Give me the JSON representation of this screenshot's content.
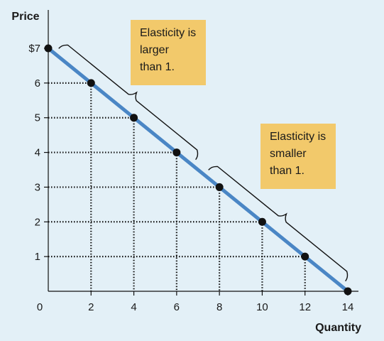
{
  "chart_data": {
    "type": "line",
    "xlabel": "Quantity",
    "ylabel": "Price",
    "xlim": [
      0,
      14
    ],
    "ylim": [
      0,
      7
    ],
    "x_ticks": [
      "0",
      "2",
      "4",
      "6",
      "8",
      "10",
      "12",
      "14"
    ],
    "y_ticks": [
      "",
      "1",
      "2",
      "3",
      "4",
      "5",
      "6",
      "$7"
    ],
    "grid": "dotted guide lines from each point to both axes",
    "series": [
      {
        "x": [
          0,
          2,
          4,
          6,
          8,
          10,
          12,
          14
        ],
        "y": [
          7,
          6,
          5,
          4,
          3,
          2,
          1,
          0
        ],
        "color": "#4a86c5"
      }
    ],
    "point_color": "#111111",
    "annotations": [
      {
        "lines": [
          "Elasticity is",
          "larger",
          "than 1."
        ],
        "range": [
          0,
          7
        ],
        "box_color": "#f2c96b"
      },
      {
        "lines": [
          "Elasticity is",
          "smaller",
          "than 1."
        ],
        "range": [
          7,
          14
        ],
        "box_color": "#f2c96b"
      }
    ]
  }
}
